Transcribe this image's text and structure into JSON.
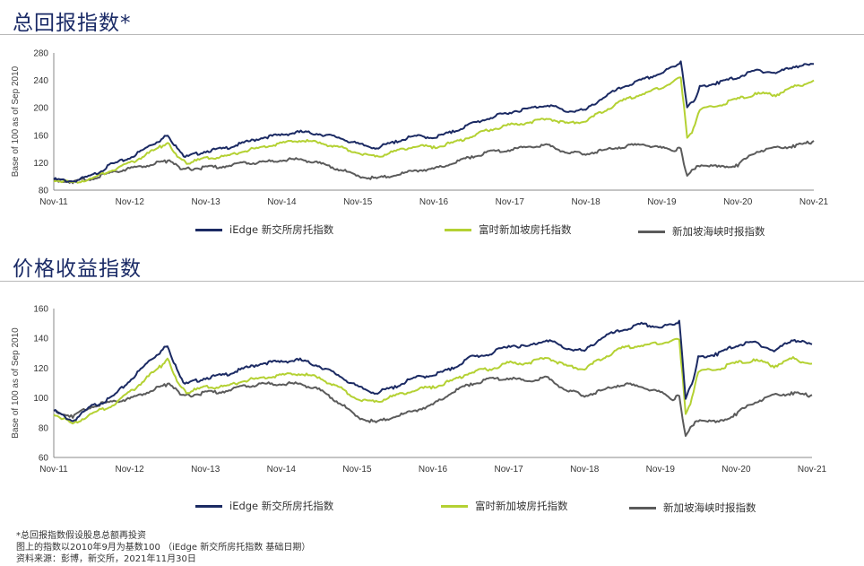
{
  "colors": {
    "edge": "#1b2a63",
    "ft": "#b4d133",
    "sts": "#5b5b5b",
    "title": "#1a2a66"
  },
  "chart_data": [
    {
      "type": "line",
      "title": "总回报指数*",
      "ylabel": "Base of 100 as of Sep 2010",
      "ylim": [
        80,
        280
      ],
      "yticks": [
        80,
        120,
        160,
        200,
        240,
        280
      ],
      "x_labels": [
        "Nov-11",
        "Nov-12",
        "Nov-13",
        "Nov-14",
        "Nov-15",
        "Nov-16",
        "Nov-17",
        "Nov-18",
        "Nov-19",
        "Nov-20",
        "Nov-21"
      ],
      "x": [
        "Nov-11",
        "Feb-12",
        "May-12",
        "Aug-12",
        "Nov-12",
        "Feb-13",
        "Apr-13",
        "May-13",
        "Jul-13",
        "Aug-13",
        "Nov-13",
        "Feb-14",
        "May-14",
        "Aug-14",
        "Nov-14",
        "Feb-15",
        "May-15",
        "Aug-15",
        "Nov-15",
        "Feb-16",
        "May-16",
        "Aug-16",
        "Nov-16",
        "Feb-17",
        "May-17",
        "Aug-17",
        "Nov-17",
        "Feb-18",
        "May-18",
        "Aug-18",
        "Nov-18",
        "Feb-19",
        "May-19",
        "Aug-19",
        "Nov-19",
        "Jan-20",
        "Feb-20",
        "Mar-20",
        "Apr-20",
        "May-20",
        "Aug-20",
        "Nov-20",
        "Feb-21",
        "May-21",
        "Aug-21",
        "Nov-21"
      ],
      "series": [
        {
          "name": "iEdge 新交所房托指数",
          "color": "#1b2a63",
          "values": [
            97,
            94,
            102,
            118,
            128,
            145,
            155,
            162,
            135,
            130,
            138,
            142,
            150,
            158,
            162,
            166,
            163,
            158,
            148,
            143,
            152,
            160,
            158,
            166,
            178,
            187,
            195,
            200,
            206,
            196,
            198,
            218,
            232,
            242,
            252,
            262,
            268,
            202,
            210,
            232,
            238,
            246,
            256,
            252,
            262,
            264
          ]
        },
        {
          "name": "富时新加坡房托指数",
          "color": "#b4d133",
          "values": [
            96,
            92,
            98,
            110,
            120,
            135,
            145,
            150,
            126,
            120,
            128,
            130,
            138,
            144,
            150,
            154,
            150,
            144,
            136,
            130,
            138,
            146,
            144,
            150,
            160,
            170,
            176,
            180,
            186,
            178,
            182,
            198,
            212,
            222,
            230,
            240,
            246,
            158,
            170,
            198,
            205,
            214,
            222,
            220,
            232,
            240
          ]
        },
        {
          "name": "新加坡海峡时报指数",
          "color": "#5b5b5b",
          "values": [
            96,
            93,
            98,
            107,
            113,
            118,
            122,
            124,
            114,
            112,
            114,
            116,
            120,
            122,
            125,
            126,
            120,
            112,
            102,
            98,
            103,
            110,
            112,
            120,
            130,
            137,
            140,
            145,
            146,
            136,
            134,
            140,
            145,
            148,
            142,
            140,
            142,
            100,
            112,
            118,
            115,
            118,
            138,
            142,
            146,
            152
          ]
        }
      ]
    },
    {
      "type": "line",
      "title": "价格收益指数",
      "ylabel": "Base of 100 as of Sep 2010",
      "ylim": [
        60,
        160
      ],
      "yticks": [
        60,
        80,
        100,
        120,
        140,
        160
      ],
      "x_labels": [
        "Nov-11",
        "Nov-12",
        "Nov-13",
        "Nov-14",
        "Nov-15",
        "Nov-16",
        "Nov-17",
        "Nov-18",
        "Nov-19",
        "Nov-20",
        "Nov-21"
      ],
      "x": [
        "Nov-11",
        "Feb-12",
        "May-12",
        "Aug-12",
        "Nov-12",
        "Feb-13",
        "Apr-13",
        "May-13",
        "Jul-13",
        "Aug-13",
        "Nov-13",
        "Feb-14",
        "May-14",
        "Aug-14",
        "Nov-14",
        "Feb-15",
        "May-15",
        "Aug-15",
        "Nov-15",
        "Feb-16",
        "May-16",
        "Aug-16",
        "Nov-16",
        "Feb-17",
        "May-17",
        "Aug-17",
        "Nov-17",
        "Feb-18",
        "May-18",
        "Aug-18",
        "Nov-18",
        "Feb-19",
        "May-19",
        "Aug-19",
        "Nov-19",
        "Jan-20",
        "Feb-20",
        "Mar-20",
        "Apr-20",
        "May-20",
        "Aug-20",
        "Nov-20",
        "Feb-21",
        "May-21",
        "Aug-21",
        "Nov-21"
      ],
      "series": [
        {
          "name": "iEdge 新交所房托指数",
          "color": "#1b2a63",
          "values": [
            92,
            85,
            95,
            100,
            112,
            125,
            132,
            136,
            114,
            110,
            114,
            116,
            120,
            124,
            125,
            126,
            122,
            116,
            108,
            104,
            108,
            114,
            116,
            120,
            128,
            130,
            136,
            135,
            140,
            134,
            132,
            142,
            146,
            150,
            148,
            150,
            152,
            100,
            110,
            128,
            130,
            136,
            138,
            132,
            140,
            136
          ]
        },
        {
          "name": "富时新加坡房托指数",
          "color": "#b4d133",
          "values": [
            90,
            83,
            90,
            95,
            104,
            115,
            122,
            127,
            108,
            104,
            108,
            108,
            112,
            114,
            116,
            117,
            114,
            108,
            100,
            98,
            102,
            106,
            108,
            112,
            118,
            120,
            124,
            124,
            128,
            122,
            120,
            128,
            134,
            136,
            137,
            139,
            140,
            90,
            100,
            118,
            120,
            124,
            126,
            122,
            127,
            123
          ]
        },
        {
          "name": "新加坡海峡时报指数",
          "color": "#5b5b5b",
          "values": [
            92,
            88,
            95,
            98,
            100,
            105,
            108,
            110,
            104,
            102,
            104,
            105,
            108,
            110,
            110,
            110,
            106,
            98,
            88,
            84,
            88,
            92,
            96,
            104,
            110,
            113,
            114,
            112,
            114,
            106,
            102,
            106,
            110,
            108,
            104,
            100,
            102,
            74,
            82,
            86,
            84,
            90,
            98,
            102,
            104,
            102
          ]
        }
      ]
    }
  ],
  "legend_labels": [
    "iEdge 新交所房托指数",
    "富时新加坡房托指数",
    "新加坡海峡时报指数"
  ],
  "notes": [
    "*总回报指数假设股息总额再投资",
    "图上的指数以2010年9月为基数100 （iEdge 新交所房托指数 基础日期）",
    "资料来源：彭博，新交所，2021年11月30日"
  ]
}
